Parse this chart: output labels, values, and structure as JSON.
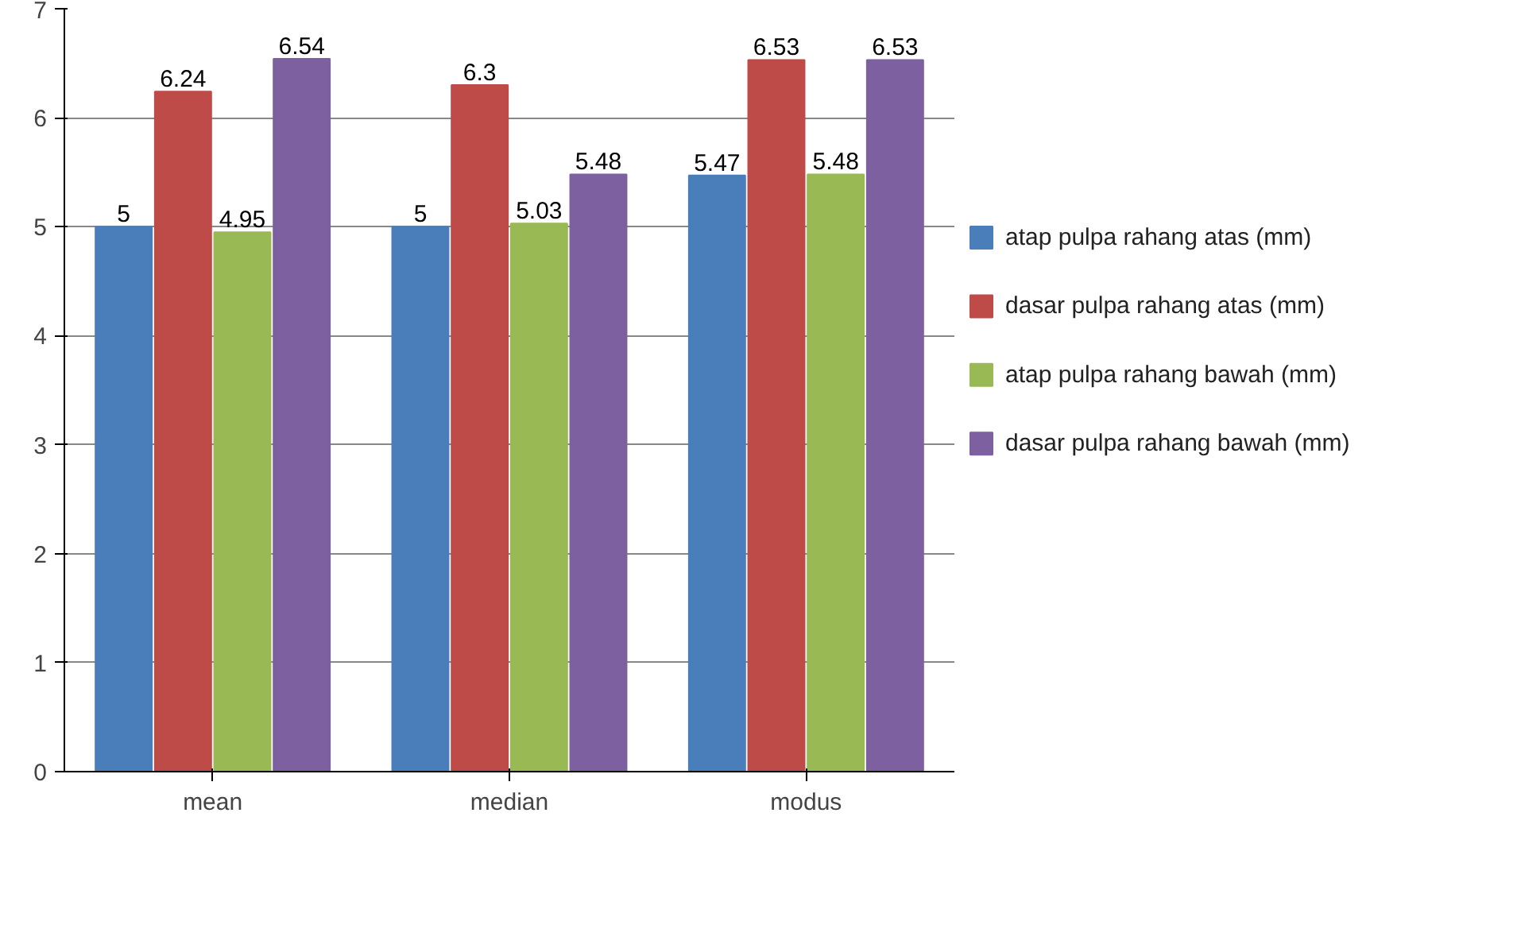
{
  "chart_data": {
    "type": "bar",
    "categories": [
      "mean",
      "median",
      "modus"
    ],
    "series": [
      {
        "name": "atap pulpa rahang atas (mm)",
        "color": "#4a7ebb",
        "values": [
          5,
          5,
          5.47
        ]
      },
      {
        "name": "dasar pulpa rahang atas (mm)",
        "color": "#be4b48",
        "values": [
          6.24,
          6.3,
          6.53
        ]
      },
      {
        "name": "atap pulpa rahang bawah (mm)",
        "color": "#98b954",
        "values": [
          4.95,
          5.03,
          5.48
        ]
      },
      {
        "name": "dasar pulpa rahang bawah (mm)",
        "color": "#7d60a0",
        "values": [
          6.54,
          5.48,
          6.53
        ]
      }
    ],
    "ylim": [
      0,
      7
    ],
    "yticks": [
      0,
      1,
      2,
      3,
      4,
      5,
      6,
      7
    ],
    "grid": "y",
    "legend": "right",
    "data_labels": true
  }
}
